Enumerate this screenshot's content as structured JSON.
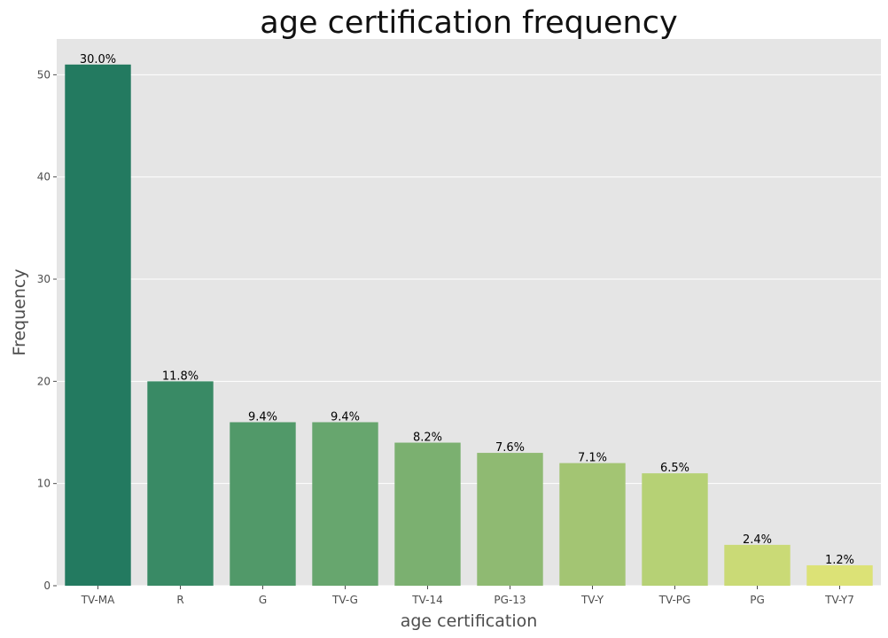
{
  "chart_data": {
    "type": "bar",
    "title": "age certification frequency",
    "xlabel": "age certification",
    "ylabel": "Frequency",
    "categories": [
      "TV-MA",
      "R",
      "G",
      "TV-G",
      "TV-14",
      "PG-13",
      "TV-Y",
      "TV-PG",
      "PG",
      "TV-Y7"
    ],
    "values": [
      51,
      20,
      16,
      16,
      14,
      13,
      12,
      11,
      4,
      2
    ],
    "data_labels": [
      "30.0%",
      "11.8%",
      "9.4%",
      "9.4%",
      "8.2%",
      "7.6%",
      "7.1%",
      "6.5%",
      "2.4%",
      "1.2%"
    ],
    "ylim": [
      0,
      53.5
    ],
    "yticks": [
      0,
      10,
      20,
      30,
      40,
      50
    ],
    "grid": true,
    "colors": [
      "#237a60",
      "#398a65",
      "#519969",
      "#67a66e",
      "#7bb070",
      "#8fba72",
      "#a3c573",
      "#b6d175",
      "#cada76",
      "#dce276"
    ],
    "background": "#e5e5e5",
    "grid_color": "#ffffff"
  }
}
